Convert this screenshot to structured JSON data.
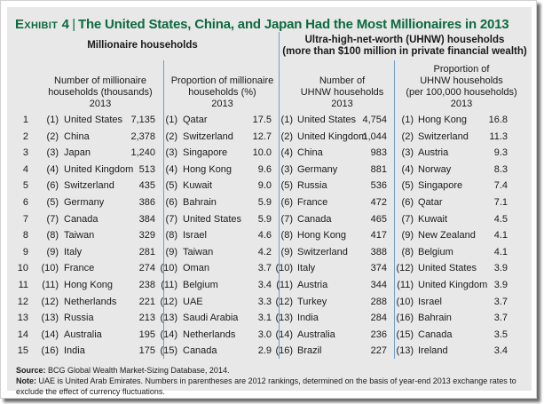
{
  "title": {
    "exhibit": "Exhibit 4",
    "separator": "|",
    "text": "The United States, China, and Japan Had the Most Millionaires in 2013"
  },
  "groups": {
    "millionaire": "Millionaire households",
    "uhnw_line1": "Ultra-high-net-worth (UHNW) households",
    "uhnw_line2": "(more than $100 million in private financial wealth)"
  },
  "columns": {
    "mill_number": [
      "Number of millionaire",
      "households (thousands)",
      "2013"
    ],
    "mill_proportion": [
      "Proportion of millionaire",
      "households (%)",
      "2013"
    ],
    "uhnw_number": [
      "Number of",
      "UHNW households",
      "2013"
    ],
    "uhnw_proportion": [
      "Proportion of",
      "UHNW households",
      "(per 100,000 households)",
      "2013"
    ]
  },
  "rows": [
    {
      "rank": "1",
      "mn": {
        "prev": "(1)",
        "country": "United States",
        "value": "7,135"
      },
      "mp": {
        "prev": "(1)",
        "country": "Qatar",
        "value": "17.5"
      },
      "un": {
        "prev": "(1)",
        "country": "United States",
        "value": "4,754"
      },
      "up": {
        "prev": "(1)",
        "country": "Hong Kong",
        "value": "16.8"
      }
    },
    {
      "rank": "2",
      "mn": {
        "prev": "(2)",
        "country": "China",
        "value": "2,378"
      },
      "mp": {
        "prev": "(2)",
        "country": "Switzerland",
        "value": "12.7"
      },
      "un": {
        "prev": "(2)",
        "country": "United Kingdom",
        "value": "1,044"
      },
      "up": {
        "prev": "(2)",
        "country": "Switzerland",
        "value": "11.3"
      }
    },
    {
      "rank": "3",
      "mn": {
        "prev": "(3)",
        "country": "Japan",
        "value": "1,240"
      },
      "mp": {
        "prev": "(3)",
        "country": "Singapore",
        "value": "10.0"
      },
      "un": {
        "prev": "(4)",
        "country": "China",
        "value": "983"
      },
      "up": {
        "prev": "(3)",
        "country": "Austria",
        "value": "9.3"
      }
    },
    {
      "rank": "4",
      "mn": {
        "prev": "(4)",
        "country": "United Kingdom",
        "value": "513"
      },
      "mp": {
        "prev": "(4)",
        "country": "Hong Kong",
        "value": "9.6"
      },
      "un": {
        "prev": "(3)",
        "country": "Germany",
        "value": "881"
      },
      "up": {
        "prev": "(4)",
        "country": "Norway",
        "value": "8.3"
      }
    },
    {
      "rank": "5",
      "mn": {
        "prev": "(6)",
        "country": "Switzerland",
        "value": "435"
      },
      "mp": {
        "prev": "(5)",
        "country": "Kuwait",
        "value": "9.0"
      },
      "un": {
        "prev": "(5)",
        "country": "Russia",
        "value": "536"
      },
      "up": {
        "prev": "(5)",
        "country": "Singapore",
        "value": "7.4"
      }
    },
    {
      "rank": "6",
      "mn": {
        "prev": "(5)",
        "country": "Germany",
        "value": "386"
      },
      "mp": {
        "prev": "(6)",
        "country": "Bahrain",
        "value": "5.9"
      },
      "un": {
        "prev": "(6)",
        "country": "France",
        "value": "472"
      },
      "up": {
        "prev": "(6)",
        "country": "Qatar",
        "value": "7.1"
      }
    },
    {
      "rank": "7",
      "mn": {
        "prev": "(7)",
        "country": "Canada",
        "value": "384"
      },
      "mp": {
        "prev": "(7)",
        "country": "United States",
        "value": "5.9"
      },
      "un": {
        "prev": "(7)",
        "country": "Canada",
        "value": "465"
      },
      "up": {
        "prev": "(7)",
        "country": "Kuwait",
        "value": "4.5"
      }
    },
    {
      "rank": "8",
      "mn": {
        "prev": "(8)",
        "country": "Taiwan",
        "value": "329"
      },
      "mp": {
        "prev": "(8)",
        "country": "Israel",
        "value": "4.6"
      },
      "un": {
        "prev": "(8)",
        "country": "Hong Kong",
        "value": "417"
      },
      "up": {
        "prev": "(9)",
        "country": "New Zealand",
        "value": "4.1"
      }
    },
    {
      "rank": "9",
      "mn": {
        "prev": "(9)",
        "country": "Italy",
        "value": "281"
      },
      "mp": {
        "prev": "(9)",
        "country": "Taiwan",
        "value": "4.2"
      },
      "un": {
        "prev": "(9)",
        "country": "Switzerland",
        "value": "388"
      },
      "up": {
        "prev": "(8)",
        "country": "Belgium",
        "value": "4.1"
      }
    },
    {
      "rank": "10",
      "mn": {
        "prev": "(10)",
        "country": "France",
        "value": "274"
      },
      "mp": {
        "prev": "(10)",
        "country": "Oman",
        "value": "3.7"
      },
      "un": {
        "prev": "(10)",
        "country": "Italy",
        "value": "374"
      },
      "up": {
        "prev": "(12)",
        "country": "United States",
        "value": "3.9"
      }
    },
    {
      "rank": "11",
      "mn": {
        "prev": "(11)",
        "country": "Hong Kong",
        "value": "238"
      },
      "mp": {
        "prev": "(11)",
        "country": "Belgium",
        "value": "3.4"
      },
      "un": {
        "prev": "(11)",
        "country": "Austria",
        "value": "344"
      },
      "up": {
        "prev": "(11)",
        "country": "United Kingdom",
        "value": "3.9"
      }
    },
    {
      "rank": "12",
      "mn": {
        "prev": "(12)",
        "country": "Netherlands",
        "value": "221"
      },
      "mp": {
        "prev": "(12)",
        "country": "UAE",
        "value": "3.3"
      },
      "un": {
        "prev": "(12)",
        "country": "Turkey",
        "value": "288"
      },
      "up": {
        "prev": "(10)",
        "country": "Israel",
        "value": "3.7"
      }
    },
    {
      "rank": "13",
      "mn": {
        "prev": "(13)",
        "country": "Russia",
        "value": "213"
      },
      "mp": {
        "prev": "(13)",
        "country": "Saudi Arabia",
        "value": "3.1"
      },
      "un": {
        "prev": "(13)",
        "country": "India",
        "value": "284"
      },
      "up": {
        "prev": "(16)",
        "country": "Bahrain",
        "value": "3.7"
      }
    },
    {
      "rank": "14",
      "mn": {
        "prev": "(14)",
        "country": "Australia",
        "value": "195"
      },
      "mp": {
        "prev": "(14)",
        "country": "Netherlands",
        "value": "3.0"
      },
      "un": {
        "prev": "(14)",
        "country": "Australia",
        "value": "236"
      },
      "up": {
        "prev": "(15)",
        "country": "Canada",
        "value": "3.5"
      }
    },
    {
      "rank": "15",
      "mn": {
        "prev": "(16)",
        "country": "India",
        "value": "175"
      },
      "mp": {
        "prev": "(15)",
        "country": "Canada",
        "value": "2.9"
      },
      "un": {
        "prev": "(16)",
        "country": "Brazil",
        "value": "227"
      },
      "up": {
        "prev": "(13)",
        "country": "Ireland",
        "value": "3.4"
      }
    }
  ],
  "footer": {
    "source_label": "Source:",
    "source_text": " BCG Global Wealth Market-Sizing Database, 2014.",
    "note_label": "Note:",
    "note_text": " UAE is United Arab Emirates. Numbers in parentheses are 2012 rankings, determined on the basis of year-end 2013 exchange rates to exclude the effect of currency fluctuations."
  },
  "colors": {
    "title_green": "#0d6a3e",
    "divider_blue": "#6d9ec9",
    "panel_grey": "#e8e8e9"
  }
}
